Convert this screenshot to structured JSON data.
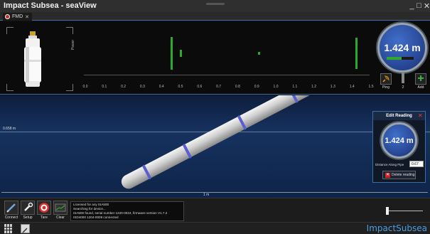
{
  "window": {
    "title": "Impact Subsea - seaView"
  },
  "tabs": [
    {
      "label": "FMD"
    }
  ],
  "sonar": {
    "y_label": "Power",
    "x_ticks": [
      "0.0",
      "0.1",
      "0.2",
      "0.3",
      "0.4",
      "0.5",
      "0.6",
      "0.7",
      "0.8",
      "0.9",
      "1.0",
      "1.1",
      "1.2",
      "1.3",
      "1.4",
      "1.5"
    ],
    "bar_color": "#2ea82e"
  },
  "chart_data": {
    "type": "bar",
    "xlabel": "",
    "ylabel": "Power",
    "xlim": [
      0.0,
      1.5
    ],
    "ylim": [
      0,
      1
    ],
    "points": [
      {
        "x": 0.45,
        "y": 1.0
      },
      {
        "x": 0.5,
        "y": 0.22
      },
      {
        "x": 0.91,
        "y": 0.1
      },
      {
        "x": 1.42,
        "y": 0.97
      }
    ]
  },
  "range_display": {
    "value": "1.424 m"
  },
  "toolbar_right": {
    "ping_label": "Ping",
    "counter": "2",
    "add_label": "Add"
  },
  "scene": {
    "depth_label": "0.658 m",
    "scale_label": "1 m"
  },
  "edit_reading": {
    "title": "Edit Reading",
    "value": "1.424 m",
    "distance_label": "Distance Along Pipe",
    "distance_value": "0.67",
    "delete_label": "Delete reading"
  },
  "bottom_toolbar": {
    "connect": "Connect",
    "setup": "Setup",
    "tare": "Tare",
    "clear": "Clear"
  },
  "log": [
    "Licensed for any ISA500",
    "Searching for device...",
    "ISA500 found, serial number 1220-0024, firmware version V1.7.2",
    "ISD4000 1204-0009 connected"
  ],
  "brand": "ImpactSubsea",
  "colors": {
    "accent": "#3a6ea5",
    "gauge": "#2a4a9a",
    "pipe_band": "#5a5fd0"
  }
}
